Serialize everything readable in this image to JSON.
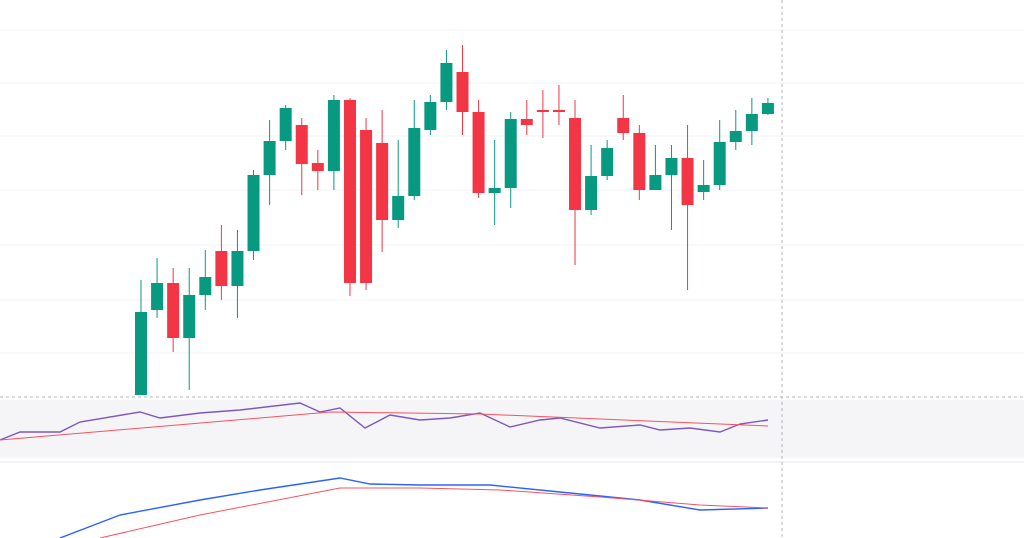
{
  "chart_data": [
    {
      "type": "candlestick",
      "color_up": "#089981",
      "color_down": "#f23645",
      "ylim": [
        0,
        395
      ],
      "xlim": [
        0,
        40
      ],
      "open": [
        0,
        85,
        112,
        57,
        100,
        144,
        109,
        144,
        220,
        254,
        270,
        232,
        224,
        295,
        265,
        252,
        175,
        199,
        265,
        293,
        323,
        283,
        202,
        207,
        276,
        285,
        285,
        277,
        185,
        219,
        277,
        262,
        205,
        220,
        237,
        203,
        210,
        253,
        264,
        281
      ],
      "close": [
        83,
        112,
        57,
        100,
        118,
        109,
        144,
        220,
        254,
        287,
        231,
        224,
        295,
        112,
        112,
        175,
        199,
        267,
        293,
        332,
        283,
        202,
        207,
        276,
        270,
        283,
        283,
        185,
        219,
        247,
        262,
        205,
        220,
        237,
        190,
        210,
        253,
        264,
        281,
        292
      ],
      "high": [
        115,
        137,
        127,
        127,
        145,
        170,
        165,
        225,
        275,
        290,
        277,
        245,
        300,
        297,
        277,
        285,
        255,
        295,
        300,
        345,
        350,
        295,
        255,
        283,
        295,
        305,
        310,
        295,
        250,
        255,
        300,
        270,
        250,
        250,
        270,
        235,
        275,
        285,
        297,
        297
      ],
      "low": [
        0,
        77,
        43,
        5,
        85,
        95,
        77,
        135,
        190,
        245,
        200,
        205,
        205,
        99,
        105,
        143,
        167,
        195,
        260,
        285,
        260,
        197,
        170,
        187,
        260,
        257,
        270,
        130,
        180,
        215,
        255,
        195,
        205,
        165,
        105,
        195,
        205,
        245,
        250,
        280
      ]
    },
    {
      "type": "line",
      "ylim": [
        0,
        58
      ],
      "xlim": [
        0,
        1024
      ],
      "series": [
        {
          "color": "#7e57c2",
          "x": [
            0,
            20,
            60,
            80,
            140,
            160,
            200,
            240,
            300,
            320,
            340,
            365,
            390,
            420,
            450,
            480,
            510,
            540,
            560,
            600,
            640,
            660,
            690,
            720,
            740,
            768
          ],
          "values": [
            18,
            26,
            26,
            36,
            46,
            40,
            45,
            48,
            55,
            46,
            50,
            30,
            43,
            38,
            40,
            45,
            31,
            38,
            40,
            30,
            33,
            28,
            30,
            26,
            34,
            38
          ]
        },
        {
          "color": "#f7525f",
          "x": [
            0,
            330,
            480,
            768
          ],
          "values": [
            18,
            46,
            44,
            32
          ]
        }
      ]
    },
    {
      "type": "line",
      "ylim": [
        0,
        73
      ],
      "xlim": [
        0,
        1024
      ],
      "series": [
        {
          "color": "#2962ff",
          "x": [
            60,
            120,
            200,
            260,
            340,
            370,
            420,
            490,
            560,
            640,
            700,
            768
          ],
          "values": [
            0,
            23,
            38,
            48,
            60,
            54,
            53,
            53,
            46,
            38,
            28,
            30
          ]
        },
        {
          "color": "#f7525f",
          "x": [
            100,
            200,
            340,
            420,
            500,
            600,
            700,
            768
          ],
          "values": [
            0,
            23,
            50,
            50,
            48,
            41,
            33,
            30
          ]
        }
      ]
    }
  ]
}
